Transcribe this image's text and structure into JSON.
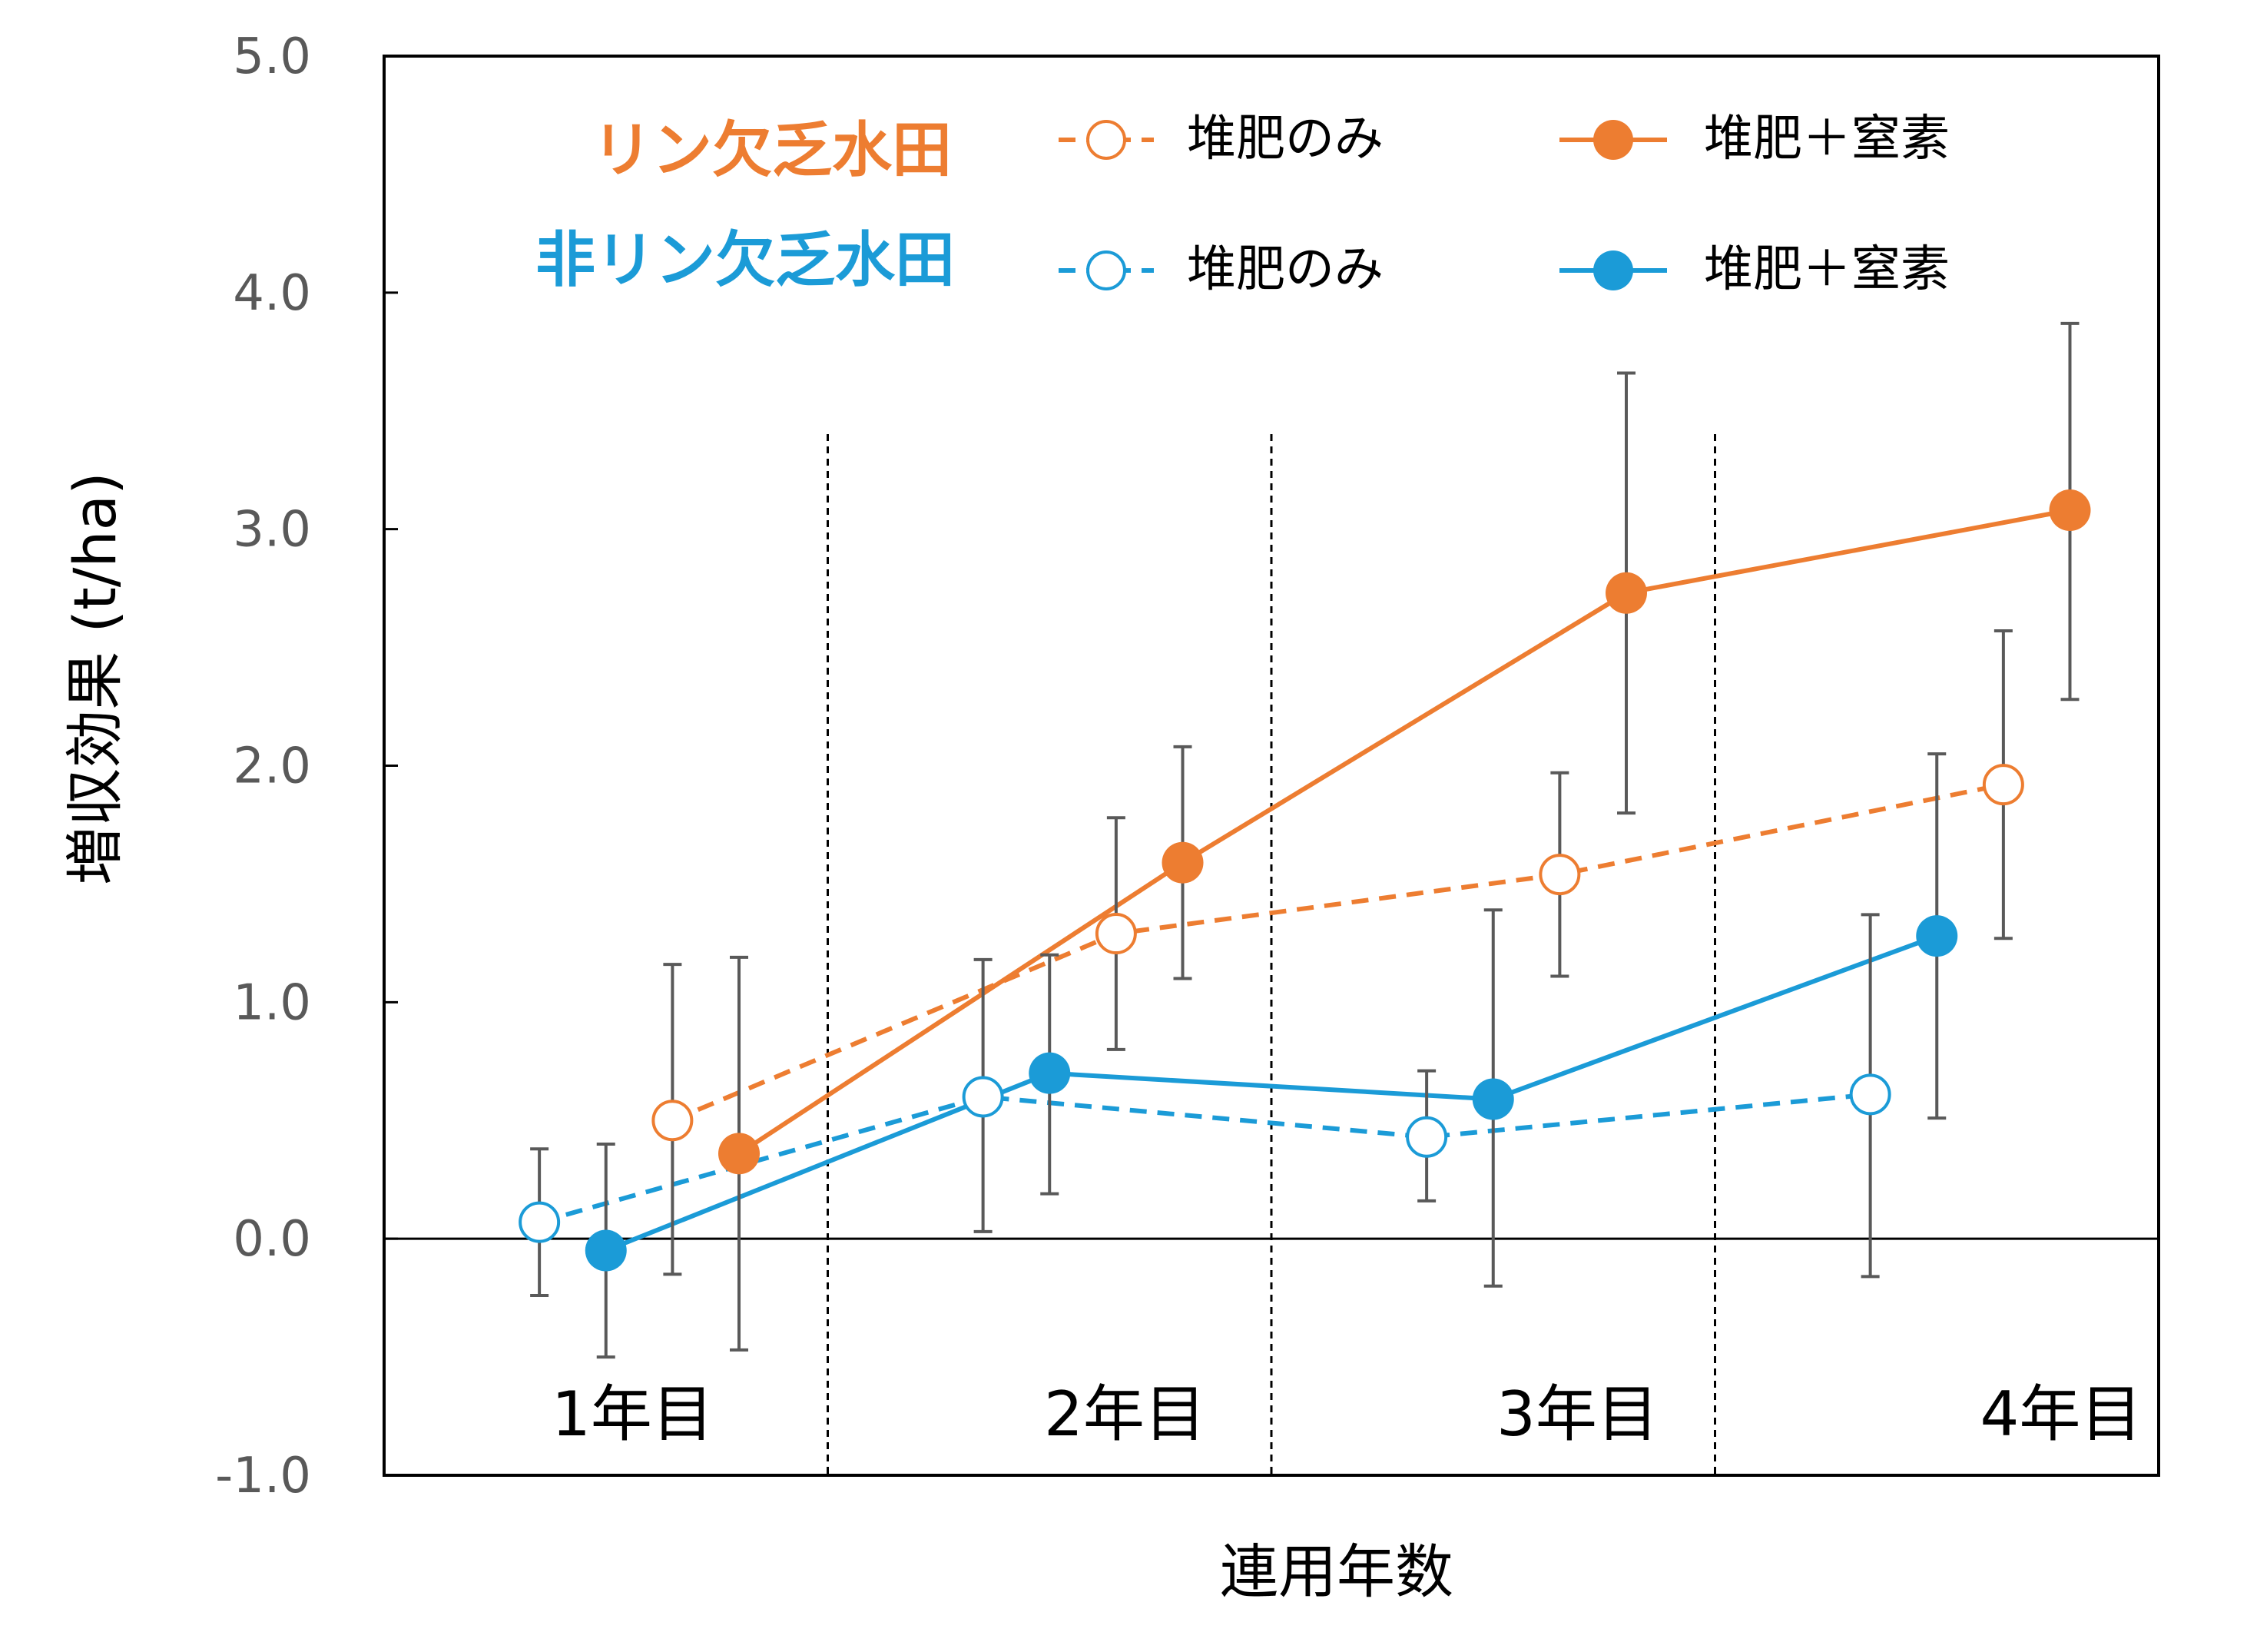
{
  "chart_data": {
    "type": "line",
    "ylabel": "増収効果 (t/ha)",
    "xlabel": "連用年数",
    "ylim": [
      -1.0,
      5.0
    ],
    "yticks": [
      "5.0",
      "4.0",
      "3.0",
      "2.0",
      "1.0",
      "0.0",
      "-1.0"
    ],
    "ytick_values": [
      5,
      4,
      3,
      2,
      1,
      0,
      -1
    ],
    "categories": [
      "1年目",
      "2年目",
      "3年目",
      "4年目"
    ],
    "colors": {
      "p_deficient": "#ED7D31",
      "non_deficient": "#1B9BD7"
    },
    "legend": {
      "group_p": "リン欠乏水田",
      "group_non": "非リン欠乏水田",
      "compost_only": "堆肥のみ",
      "compost_n": "堆肥＋窒素"
    },
    "series": [
      {
        "name": "リン欠乏水田 堆肥のみ",
        "group": "p_deficient",
        "marker": "open",
        "dashed": true,
        "offset": 0.15,
        "values": [
          0.5,
          1.29,
          1.54,
          1.92
        ],
        "err_low": [
          -0.15,
          0.8,
          1.11,
          1.27
        ],
        "err_high": [
          1.16,
          1.78,
          1.97,
          2.57
        ]
      },
      {
        "name": "リン欠乏水田 堆肥＋窒素",
        "group": "p_deficient",
        "marker": "filled",
        "dashed": false,
        "offset": 0.3,
        "values": [
          0.36,
          1.59,
          2.73,
          3.08
        ],
        "err_low": [
          -0.47,
          1.1,
          1.8,
          2.28
        ],
        "err_high": [
          1.19,
          2.08,
          3.66,
          3.87
        ]
      },
      {
        "name": "非リン欠乏水田 堆肥のみ",
        "group": "non_deficient",
        "marker": "open",
        "dashed": true,
        "offset": -0.15,
        "values": [
          0.07,
          0.6,
          0.43,
          0.61
        ],
        "err_low": [
          -0.24,
          0.03,
          0.16,
          -0.16
        ],
        "err_high": [
          0.38,
          1.18,
          0.71,
          1.37
        ]
      },
      {
        "name": "非リン欠乏水田 堆肥＋窒素",
        "group": "non_deficient",
        "marker": "filled",
        "dashed": false,
        "offset": 0.0,
        "values": [
          -0.05,
          0.7,
          0.59,
          1.28
        ],
        "err_low": [
          -0.5,
          0.19,
          -0.2,
          0.51
        ],
        "err_high": [
          0.4,
          1.2,
          1.39,
          2.05
        ]
      }
    ]
  }
}
